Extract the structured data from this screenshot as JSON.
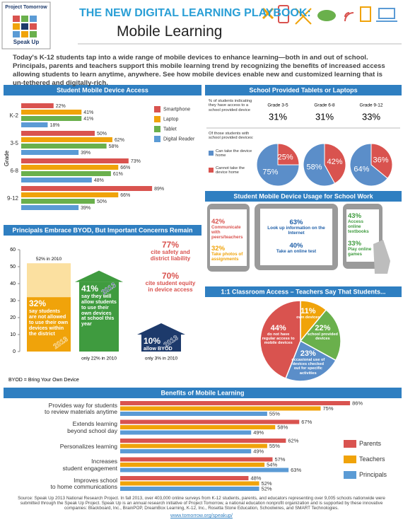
{
  "header": {
    "logo_top": "Project Tomorrow",
    "logo_bottom": "Speak Up",
    "title": "THE NEW DIGITAL LEARNING PLAYBOOK:",
    "subtitle": "Mobile Learning"
  },
  "intro": "Today's K-12 students tap into a wide range of mobile devices to enhance learning—both in and out of school. Principals, parents and teachers support this mobile learning trend by recognizing the benefits of increased access allowing students to learn anytime, anywhere. See how mobile devices enable new and customized learning that is un-tethered and digitally-rich.",
  "chart_data": [
    {
      "type": "bar",
      "orientation": "horizontal",
      "title": "Student Mobile Device Access",
      "ylabel": "Grade",
      "categories": [
        "K-2",
        "3-5",
        "6-8",
        "9-12"
      ],
      "xlim": [
        0,
        100
      ],
      "legend": "right",
      "series": [
        {
          "name": "Smartphone",
          "color": "#d9534f",
          "values": [
            22,
            50,
            73,
            89
          ],
          "value_labels": [
            "22%",
            "50%",
            "73%",
            "89%"
          ]
        },
        {
          "name": "Laptop",
          "color": "#f0a30a",
          "values": [
            41,
            62,
            66,
            66
          ],
          "value_labels": [
            "41%",
            "62%",
            "66%",
            "66%"
          ]
        },
        {
          "name": "Tablet",
          "color": "#6ab04c",
          "values": [
            41,
            58,
            61,
            50
          ],
          "value_labels": [
            "41%",
            "58%",
            "61%",
            "50%"
          ]
        },
        {
          "name": "Digital Reader",
          "color": "#5b9bd5",
          "values": [
            18,
            39,
            48,
            39
          ],
          "value_labels": [
            "18%",
            "39%",
            "48%",
            "39%"
          ]
        }
      ]
    },
    {
      "type": "pie",
      "title": "School Provided Tablets or Laptops",
      "access_label": "% of students indicating they have access to a school provided device",
      "categories": [
        "Grade 3-5",
        "Grade 6-8",
        "Grade 9-12"
      ],
      "access": [
        31,
        31,
        33
      ],
      "access_labels": [
        "31%",
        "31%",
        "33%"
      ],
      "pie_label": "Of those students with school provided devices:",
      "series": [
        {
          "name": "Can take the device home",
          "color": "#5b8ec9",
          "values": [
            75,
            58,
            64
          ],
          "value_labels": [
            "75%",
            "58%",
            "64%"
          ]
        },
        {
          "name": "Cannot take the device home",
          "color": "#d9534f",
          "values": [
            25,
            42,
            36
          ],
          "value_labels": [
            "25%",
            "42%",
            "36%"
          ]
        }
      ]
    },
    {
      "type": "bar",
      "orientation": "vertical",
      "title": "Principals Embrace BYOD, But Important Concerns Remain",
      "ylim": [
        0,
        60
      ],
      "yticks": [
        0,
        10,
        20,
        30,
        40,
        50,
        60
      ],
      "series": [
        {
          "name": "2013",
          "colors": [
            "#f0a30a",
            "#3f9b3f",
            "#1d3a6b"
          ],
          "values": [
            32,
            41,
            10
          ],
          "value_labels": [
            "32%",
            "41%",
            "10%"
          ],
          "notes": [
            "say students are not allowed to use their own devices within the district",
            "say they will allow students to use their own devices at school this year",
            "allow BYOD"
          ]
        },
        {
          "name": "2010",
          "colors": [
            "#fbe0a0",
            "#e6e6e6",
            "#e6e6e6"
          ],
          "values": [
            52,
            22,
            3
          ],
          "value_labels": [
            "52% in 2010",
            "only 22% in 2010",
            "only 3% in 2010"
          ]
        }
      ],
      "annotations": [
        {
          "label": "77%",
          "text": "cite safety and district liability"
        },
        {
          "label": "70%",
          "text": "cite student equity in device access"
        }
      ],
      "footnote": "BYOD = Bring Your Own Device"
    },
    {
      "type": "pie",
      "title": "1:1 Classroom Access – Teachers Say That Students...",
      "categories": [
        "own devices",
        "school provided devices",
        "occasional use of devices checked out for specific activities",
        "do not have regular access to mobile devices"
      ],
      "values": [
        11,
        22,
        23,
        44
      ],
      "value_labels": [
        "11%",
        "22%",
        "23%",
        "44%"
      ],
      "colors": [
        "#f0a30a",
        "#6ab04c",
        "#5b8ec9",
        "#d9534f"
      ]
    },
    {
      "type": "bar",
      "orientation": "horizontal",
      "title": "Benefits of Mobile Learning",
      "categories": [
        "Provides way for students\nto review materials anytime",
        "Extends learning\nbeyond school day",
        "Personalizes learning",
        "Increases\nstudent engagement",
        "Improves school\nto home communications"
      ],
      "xlim": [
        0,
        100
      ],
      "legend": "right",
      "series": [
        {
          "name": "Parents",
          "color": "#d9534f",
          "values": [
            86,
            67,
            62,
            57,
            48
          ],
          "value_labels": [
            "86%",
            "67%",
            "62%",
            "57%",
            "48%"
          ]
        },
        {
          "name": "Teachers",
          "color": "#f0a30a",
          "values": [
            75,
            58,
            55,
            54,
            52
          ],
          "value_labels": [
            "75%",
            "58%",
            "55%",
            "54%",
            "52%"
          ]
        },
        {
          "name": "Principals",
          "color": "#5b9bd5",
          "values": [
            55,
            49,
            49,
            63,
            52
          ],
          "value_labels": [
            "55%",
            "49%",
            "49%",
            "63%",
            "52%"
          ]
        }
      ]
    }
  ],
  "usage": {
    "title": "Student Mobile Device Usage for School Work",
    "items": [
      {
        "percent": "42%",
        "label": "Communicate with peers/teachers"
      },
      {
        "percent": "32%",
        "label": "Take photos of assignments"
      },
      {
        "percent": "63%",
        "label": "Look up information on the Internet"
      },
      {
        "percent": "40%",
        "label": "Take an online test"
      },
      {
        "percent": "43%",
        "label": "Access online textbooks"
      },
      {
        "percent": "33%",
        "label": "Play online games"
      }
    ]
  },
  "footer": {
    "source": "Source: Speak Up 2013 National Research Project. In fall 2013, over 403,000 online surveys from K-12 students, parents, and educators representing over 9,005 schools nationwide were submitted through the Speak Up Project. Speak Up is an annual research initiative of Project Tomorrow, a national education nonprofit organization and is supported by these innovative companies: Blackboard, Inc., BrainPOP, DreamBox Learning, K-12, Inc., Rosetta Stone Education, Schoolwires, and SMART Technologies.",
    "url": "www.tomorrow.org/speakup/"
  }
}
